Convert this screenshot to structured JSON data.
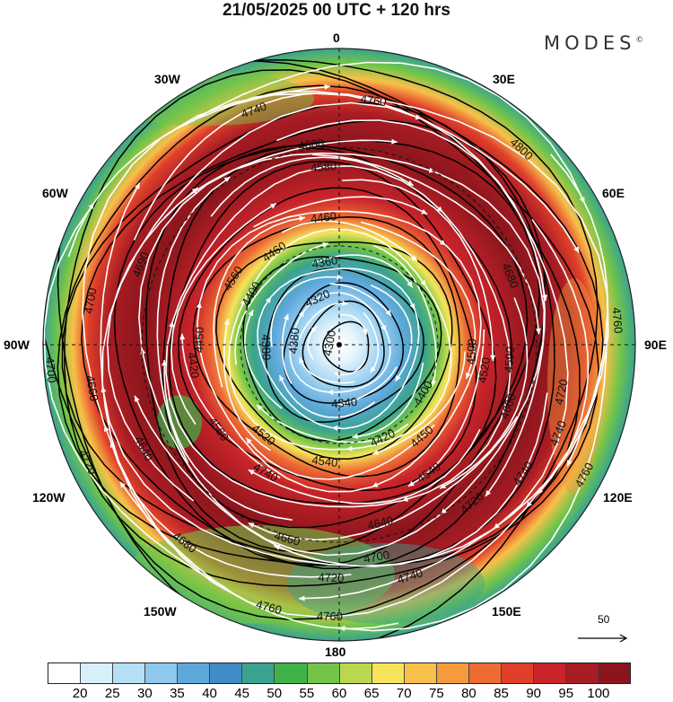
{
  "title": "21/05/2025  00 UTC  + 120 hrs",
  "brand": "MODES",
  "brand_mark": "©",
  "longitude_labels": {
    "top": "0",
    "bottom": "180",
    "left": "90W",
    "right": "90E",
    "upper_left_1": "30W",
    "upper_left_2": "60W",
    "upper_right_1": "30E",
    "upper_right_2": "60E",
    "lower_left_1": "120W",
    "lower_left_2": "150W",
    "lower_right_1": "120E",
    "lower_right_2": "150E"
  },
  "contour_labels": [
    {
      "text": "4760",
      "r": 0.83,
      "ang": 8
    },
    {
      "text": "4740",
      "r": 0.84,
      "ang": -20
    },
    {
      "text": "4680",
      "r": 0.68,
      "ang": -8
    },
    {
      "text": "4580",
      "r": 0.6,
      "ang": -5
    },
    {
      "text": "4460",
      "r": 0.43,
      "ang": -7
    },
    {
      "text": "4360",
      "r": 0.28,
      "ang": -10
    },
    {
      "text": "4460",
      "r": 0.38,
      "ang": -35
    },
    {
      "text": "4400",
      "r": 0.34,
      "ang": -60
    },
    {
      "text": "4320",
      "r": 0.17,
      "ang": -25
    },
    {
      "text": "4300",
      "r": 0.03,
      "ang": -80
    },
    {
      "text": "4560",
      "r": 0.42,
      "ang": -58
    },
    {
      "text": "4690",
      "r": 0.72,
      "ang": -68
    },
    {
      "text": "4700",
      "r": 0.85,
      "ang": -80
    },
    {
      "text": "4450",
      "r": 0.47,
      "ang": -88
    },
    {
      "text": "4420",
      "r": 0.5,
      "ang": -98
    },
    {
      "text": "4380",
      "r": 0.25,
      "ang": -92
    },
    {
      "text": "4380",
      "r": 0.15,
      "ang": -85
    },
    {
      "text": "4660",
      "r": 0.85,
      "ang": -100
    },
    {
      "text": "4700",
      "r": 0.98,
      "ang": -95
    },
    {
      "text": "4640",
      "r": 0.75,
      "ang": -118
    },
    {
      "text": "4560",
      "r": 0.5,
      "ang": -125
    },
    {
      "text": "4720",
      "r": 0.94,
      "ang": -115
    },
    {
      "text": "4740",
      "r": 0.5,
      "ang": -150
    },
    {
      "text": "4520",
      "r": 0.4,
      "ang": -140
    },
    {
      "text": "4680",
      "r": 0.85,
      "ang": -142
    },
    {
      "text": "4540",
      "r": 0.4,
      "ang": -173
    },
    {
      "text": "4340",
      "r": 0.2,
      "ang": 175
    },
    {
      "text": "4420",
      "r": 0.35,
      "ang": 155
    },
    {
      "text": "4450",
      "r": 0.42,
      "ang": 138
    },
    {
      "text": "4400",
      "r": 0.33,
      "ang": 120
    },
    {
      "text": "4500",
      "r": 0.45,
      "ang": 93
    },
    {
      "text": "4520",
      "r": 0.5,
      "ang": 100
    },
    {
      "text": "4660",
      "r": 0.68,
      "ang": -165
    },
    {
      "text": "4640",
      "r": 0.62,
      "ang": 167
    },
    {
      "text": "4540",
      "r": 0.53,
      "ang": 145
    },
    {
      "text": "4700",
      "r": 0.73,
      "ang": 170
    },
    {
      "text": "4720",
      "r": 0.79,
      "ang": -178
    },
    {
      "text": "4740",
      "r": 0.82,
      "ang": 163
    },
    {
      "text": "4760",
      "r": 0.92,
      "ang": -178
    },
    {
      "text": "4760",
      "r": 0.92,
      "ang": -165
    },
    {
      "text": "4720",
      "r": 0.7,
      "ang": 140
    },
    {
      "text": "4740",
      "r": 0.76,
      "ang": 125
    },
    {
      "text": "4800",
      "r": 0.9,
      "ang": 43
    },
    {
      "text": "4680",
      "r": 0.62,
      "ang": 68
    },
    {
      "text": "4590",
      "r": 0.58,
      "ang": 95
    },
    {
      "text": "4600",
      "r": 0.61,
      "ang": 110
    },
    {
      "text": "4720",
      "r": 0.77,
      "ang": 102
    },
    {
      "text": "4740",
      "r": 0.8,
      "ang": 112
    },
    {
      "text": "4760",
      "r": 0.94,
      "ang": 85
    },
    {
      "text": "4760",
      "r": 0.94,
      "ang": 118
    }
  ],
  "reference_vector": {
    "value": "50"
  },
  "colorbar": {
    "colors": [
      "#ffffff",
      "#d8f0fa",
      "#b5dff5",
      "#8ec8ee",
      "#5ea8dc",
      "#3f8cc6",
      "#3aa38f",
      "#3fb34a",
      "#73c548",
      "#b9d84f",
      "#f5e45a",
      "#f8c04a",
      "#f59a3d",
      "#ee6b34",
      "#e0402a",
      "#c8242a",
      "#a81c24",
      "#8a151c"
    ],
    "ticks": [
      "20",
      "25",
      "30",
      "35",
      "40",
      "45",
      "50",
      "55",
      "60",
      "65",
      "70",
      "75",
      "80",
      "85",
      "90",
      "95",
      "100"
    ]
  }
}
